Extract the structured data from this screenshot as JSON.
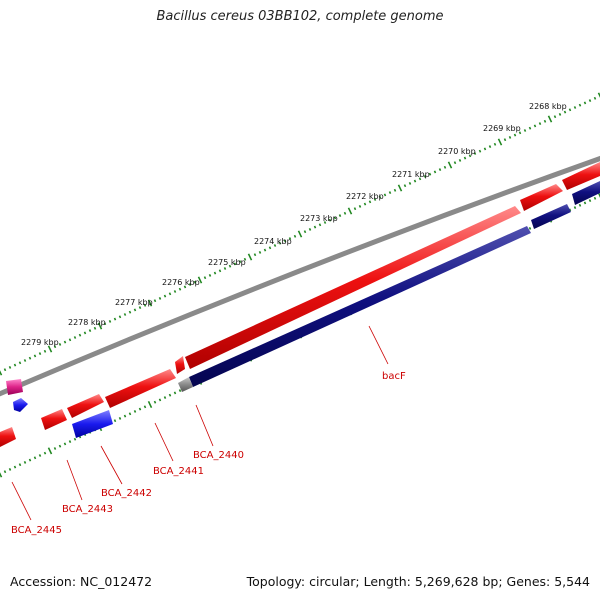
{
  "title": "Bacillus cereus 03BB102, complete genome",
  "accession": "Accession: NC_012472",
  "summary": "Topology: circular; Length: 5,269,628 bp; Genes: 5,544",
  "ruler": {
    "unit": "kbp",
    "tick_labels": [
      "2268 kbp",
      "2269 kbp",
      "2270 kbp",
      "2271 kbp",
      "2272 kbp",
      "2273 kbp",
      "2274 kbp",
      "2275 kbp",
      "2276 kbp",
      "2277 kbp",
      "2278 kbp",
      "2279 kbp"
    ]
  },
  "gene_labels": [
    "bacF",
    "BCA_2440",
    "BCA_2441",
    "BCA_2442",
    "BCA_2443",
    "BCA_2445"
  ],
  "colors": {
    "forward_strand": "#ee1111",
    "reverse_strand": "#101080",
    "backbone": "#8a8a8a",
    "ruler": "#228822",
    "magenta_feature": "#dd2288",
    "blue_feature": "#1a1aee",
    "label_text": "#cc0000"
  }
}
